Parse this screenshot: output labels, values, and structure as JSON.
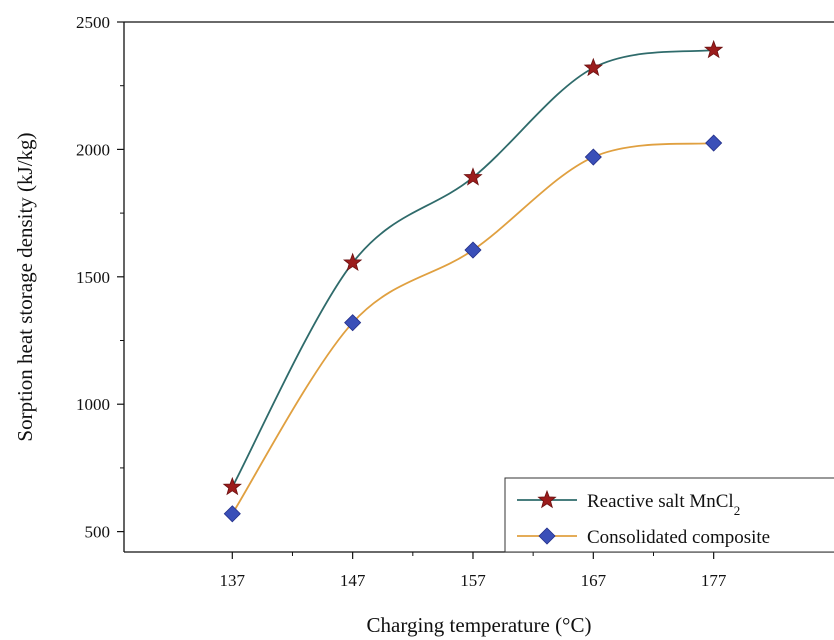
{
  "chart_data": {
    "type": "line",
    "title": "",
    "xlabel": "Charging temperature (°C)",
    "ylabel": "Sorption heat storage density (kJ/kg)",
    "x": [
      137,
      147,
      157,
      167,
      177
    ],
    "xlim": [
      128,
      187
    ],
    "ylim": [
      420,
      2500
    ],
    "yticks": [
      500,
      1000,
      1500,
      2000,
      2500
    ],
    "grid": false,
    "smooth": true,
    "legend_position": "bottom-right",
    "series": [
      {
        "name": "Reactive salt MnCl",
        "name_subscript": "2",
        "marker": "star",
        "line_color": "#2f6b6b",
        "marker_color": "#9b1c1c",
        "values": [
          675,
          1555,
          1890,
          2320,
          2390
        ]
      },
      {
        "name": "Consolidated composite",
        "marker": "diamond",
        "line_color": "#e0a040",
        "marker_color": "#3a4fb8",
        "values": [
          570,
          1320,
          1605,
          1970,
          2025
        ]
      }
    ]
  }
}
